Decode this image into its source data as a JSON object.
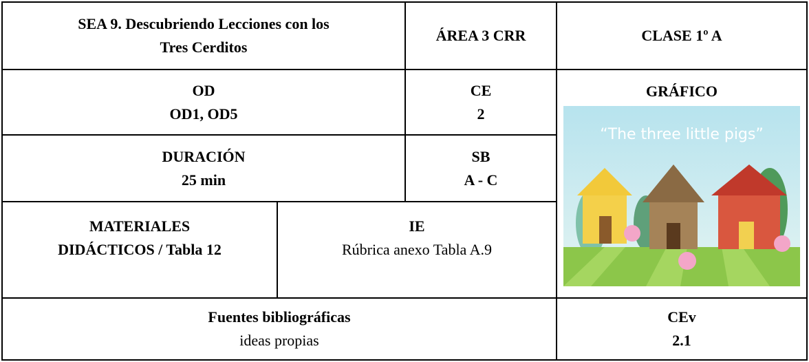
{
  "header": {
    "title_lines": [
      "SEA 9. Descubriendo Lecciones con los",
      "Tres Cerditos"
    ],
    "area": "ÁREA 3 CRR",
    "class": "CLASE 1º A"
  },
  "cells": {
    "od": {
      "label": "OD",
      "value": "OD1, OD5"
    },
    "ce": {
      "label": "CE",
      "value": "2"
    },
    "duracion": {
      "label": "DURACIÓN",
      "value": "25 min"
    },
    "sb": {
      "label": "SB",
      "value": "A - C"
    },
    "materiales": {
      "label_lines": [
        "MATERIALES",
        "DIDÁCTICOS / Tabla 12"
      ]
    },
    "ie": {
      "label": "IE",
      "value": "Rúbrica anexo Tabla A.9"
    },
    "grafico": {
      "label": "GRÁFICO",
      "image_text": "“The three little pigs”"
    },
    "fuentes": {
      "label": "Fuentes bibliográficas",
      "value": "ideas propias"
    },
    "cev": {
      "label": "CEv",
      "value": "2.1"
    }
  }
}
